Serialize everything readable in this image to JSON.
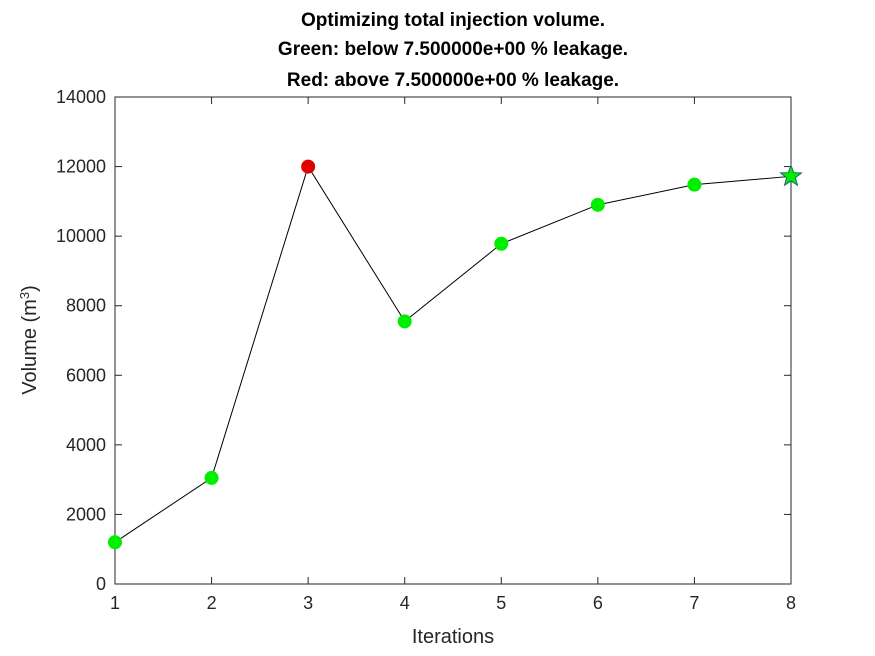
{
  "chart_data": {
    "type": "line",
    "title": [
      "Optimizing total injection volume.",
      "Green: below 7.500000e+00 % leakage.",
      "Red: above 7.500000e+00 % leakage."
    ],
    "xlabel": "Iterations",
    "ylabel_prefix": "Volume (m",
    "ylabel_superscript": "3",
    "ylabel_suffix": ")",
    "xlim": [
      1,
      8
    ],
    "ylim": [
      0,
      14000
    ],
    "xticks": [
      1,
      2,
      3,
      4,
      5,
      6,
      7,
      8
    ],
    "yticks": [
      0,
      2000,
      4000,
      6000,
      8000,
      10000,
      12000,
      14000
    ],
    "grid": false,
    "line_color": "#000000",
    "point_colors": {
      "below": "#00ee00",
      "above": "#e00000"
    },
    "points": [
      {
        "x": 1,
        "y": 1200,
        "status": "below",
        "marker": "circle"
      },
      {
        "x": 2,
        "y": 3050,
        "status": "below",
        "marker": "circle"
      },
      {
        "x": 3,
        "y": 12000,
        "status": "above",
        "marker": "circle"
      },
      {
        "x": 4,
        "y": 7550,
        "status": "below",
        "marker": "circle"
      },
      {
        "x": 5,
        "y": 9780,
        "status": "below",
        "marker": "circle"
      },
      {
        "x": 6,
        "y": 10900,
        "status": "below",
        "marker": "circle"
      },
      {
        "x": 7,
        "y": 11480,
        "status": "below",
        "marker": "circle"
      },
      {
        "x": 8,
        "y": 11720,
        "status": "below",
        "marker": "star"
      }
    ]
  }
}
